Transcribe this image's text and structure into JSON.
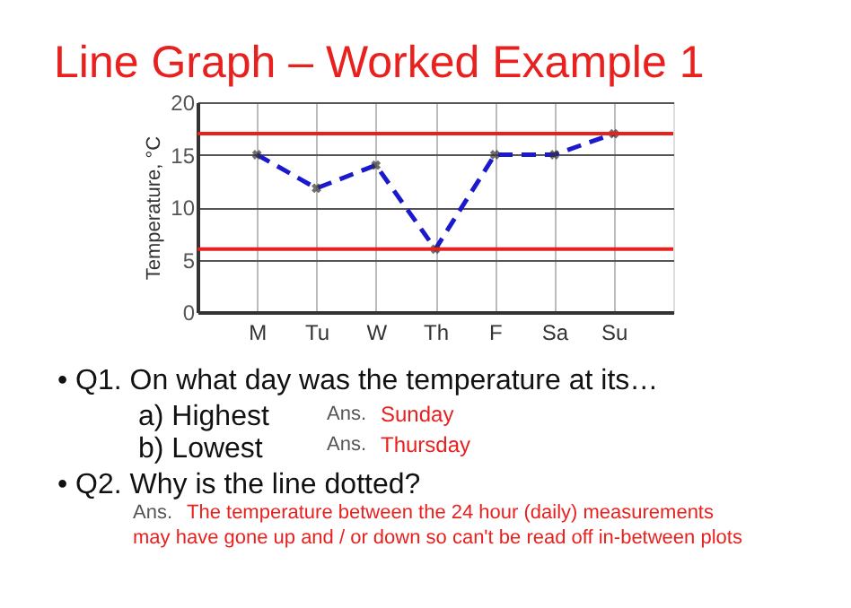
{
  "chart_data": {
    "type": "line",
    "title": "Line Graph – Worked Example 1",
    "ylabel": "Temperature, °C",
    "categories": [
      "M",
      "Tu",
      "W",
      "Th",
      "F",
      "Sa",
      "Su"
    ],
    "series": [
      {
        "color": "#1a1acc",
        "values": [
          15,
          11.8,
          14,
          6,
          15,
          15,
          17
        ]
      }
    ],
    "ylim": [
      0,
      20
    ],
    "yticks": [
      0,
      5,
      10,
      15,
      20
    ],
    "grid": true,
    "marker": "cross",
    "line_style": "dashed",
    "ref_lines": [
      {
        "axis": "y",
        "value": 17,
        "color": "#e8211f"
      },
      {
        "axis": "y",
        "value": 6,
        "color": "#e8211f"
      }
    ],
    "annotations": [
      "• Q1.  On what day was the temperature at its…",
      "a) Highest",
      "Ans.",
      "Sunday",
      "b) Lowest",
      "Ans.",
      "Thursday",
      "• Q2.  Why is the line dotted?",
      "Ans.",
      "The temperature between the 24 hour (daily) measurements",
      "may have gone up and / or down so can't be read off in-between plots"
    ]
  }
}
